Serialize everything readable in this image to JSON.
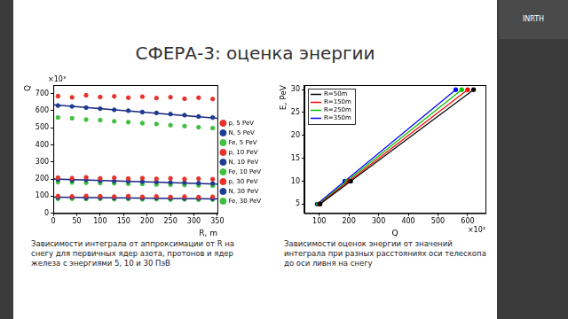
{
  "slide": {
    "title": "СФЕРА-3: оценка энергии",
    "captions": [
      "Зависимости интеграла от аппроксимации от R на снегу для первичных ядер азота, протонов и ядер железа с энергиями 5, 10 и 30 ПэВ",
      "Зависимости оценок энергии от значений интеграла при разных  расстояниях оси телескопа до оси ливня на снегу"
    ],
    "video_label": "INRTH"
  },
  "chart_data": [
    {
      "type": "scatter",
      "x_label": "R, m",
      "y_label": "Q",
      "annotations": [
        {
          "text": "×10³",
          "axis": "y"
        }
      ],
      "xlim": [
        0,
        350
      ],
      "xticks": [
        0,
        50,
        100,
        150,
        200,
        250,
        300,
        350
      ],
      "ylim": [
        0,
        750
      ],
      "yticks": [
        0,
        100,
        200,
        300,
        400,
        500,
        600,
        700
      ],
      "grid": false,
      "legend": "right",
      "x": [
        10,
        40,
        70,
        100,
        130,
        160,
        190,
        220,
        250,
        280,
        310,
        340
      ],
      "series": [
        {
          "name": "p, 5 PeV",
          "color": "#e8312a",
          "marker": "circle",
          "values": [
            100,
            98,
            101,
            99,
            97,
            100,
            96,
            98,
            95,
            97,
            94,
            96
          ]
        },
        {
          "name": "N, 5 PeV",
          "color": "#1f3a93",
          "marker": "circle",
          "values": [
            92,
            93,
            90,
            91,
            89,
            90,
            88,
            89,
            87,
            86,
            87,
            85
          ]
        },
        {
          "name": "Fe, 5 PeV",
          "color": "#3fbf3f",
          "marker": "circle",
          "values": [
            84,
            85,
            83,
            84,
            82,
            83,
            81,
            82,
            80,
            81,
            79,
            80
          ]
        },
        {
          "name": "p, 10 PeV",
          "color": "#e8312a",
          "marker": "circle",
          "values": [
            208,
            205,
            210,
            204,
            207,
            203,
            205,
            201,
            204,
            200,
            202,
            199
          ]
        },
        {
          "name": "N, 10 PeV",
          "color": "#1f3a93",
          "marker": "circle",
          "values": [
            197,
            193,
            195,
            190,
            188,
            187,
            185,
            183,
            180,
            179,
            176,
            174
          ]
        },
        {
          "name": "Fe, 10 PeV",
          "color": "#3fbf3f",
          "marker": "circle",
          "values": [
            182,
            180,
            178,
            176,
            175,
            172,
            171,
            168,
            167,
            165,
            163,
            161
          ]
        },
        {
          "name": "p, 30 PeV",
          "color": "#e8312a",
          "marker": "circle",
          "values": [
            685,
            678,
            690,
            680,
            684,
            676,
            682,
            674,
            679,
            670,
            676,
            668
          ]
        },
        {
          "name": "N, 30 PeV",
          "color": "#1f3a93",
          "marker": "circle",
          "values": [
            630,
            625,
            618,
            612,
            605,
            600,
            592,
            587,
            580,
            574,
            566,
            560
          ]
        },
        {
          "name": "Fe, 30 PeV",
          "color": "#3fbf3f",
          "marker": "circle",
          "values": [
            560,
            556,
            548,
            545,
            538,
            533,
            527,
            522,
            515,
            510,
            503,
            498
          ]
        }
      ],
      "fit_lines": [
        {
          "color": "#1a237e",
          "x": [
            0,
            350
          ],
          "values": [
            635,
            555
          ]
        },
        {
          "color": "#1a237e",
          "x": [
            0,
            350
          ],
          "values": [
            200,
            170
          ]
        },
        {
          "color": "#1a237e",
          "x": [
            0,
            350
          ],
          "values": [
            94,
            84
          ]
        }
      ]
    },
    {
      "type": "line",
      "x_label": "Q",
      "y_label": "E, PeV",
      "annotations": [
        {
          "text": "×10³",
          "axis": "x"
        }
      ],
      "xlim": [
        50,
        660
      ],
      "xticks": [
        100,
        200,
        300,
        400,
        500,
        600
      ],
      "ylim": [
        3,
        31
      ],
      "yticks": [
        5,
        10,
        15,
        20,
        25,
        30
      ],
      "grid": false,
      "legend": "upper left",
      "series": [
        {
          "name": "R=50m",
          "color": "#000000",
          "marker": "circle",
          "line_style": "solid",
          "x": [
            103,
            206,
            620
          ],
          "values": [
            5,
            10,
            30
          ]
        },
        {
          "name": "R=150m",
          "color": "#ff0000",
          "marker": "circle",
          "line_style": "solid",
          "x": [
            100,
            200,
            600
          ],
          "values": [
            5,
            10,
            30
          ]
        },
        {
          "name": "R=250m",
          "color": "#00c000",
          "marker": "circle",
          "line_style": "solid",
          "x": [
            97,
            193,
            580
          ],
          "values": [
            5,
            10,
            30
          ]
        },
        {
          "name": "R=350m",
          "color": "#0000ff",
          "marker": "circle",
          "line_style": "solid",
          "x": [
            93,
            186,
            560
          ],
          "values": [
            5,
            10,
            30
          ]
        }
      ]
    }
  ]
}
